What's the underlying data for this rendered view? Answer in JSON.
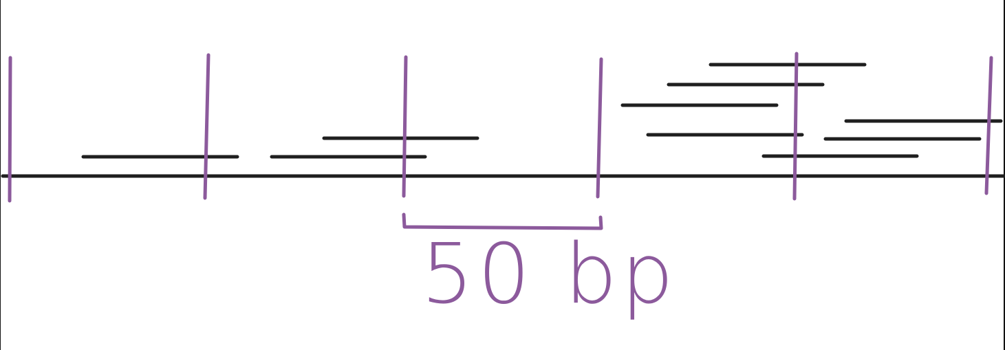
{
  "diagram": {
    "scale_bar": {
      "label": "50 bp"
    },
    "colors": {
      "read": "#1f1f1f",
      "genome_line": "#1f1f1f",
      "marker": "#8c5a9c",
      "frame": "#111111"
    }
  }
}
